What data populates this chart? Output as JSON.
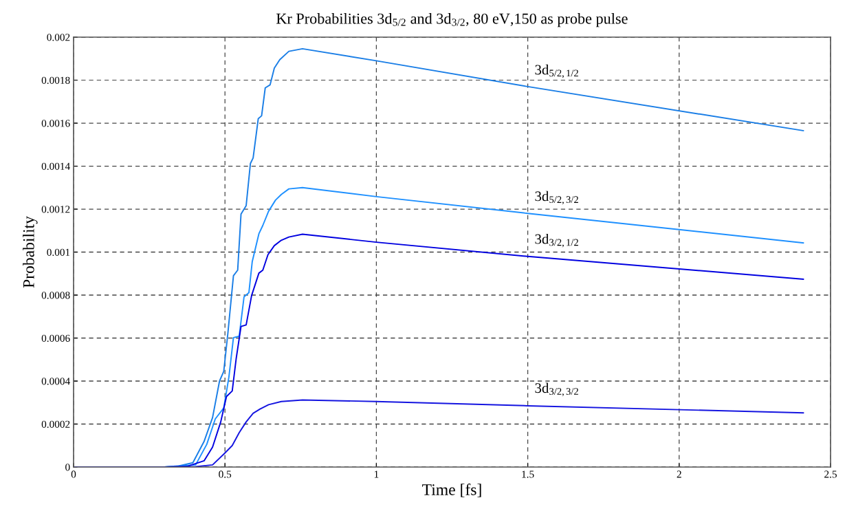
{
  "chart_data": {
    "type": "line",
    "title": "Kr Probabilities 3d$_{5/2}$ and 3d$_{3/2}$, 80 eV,150 as probe pulse",
    "xlabel": "Time [fs]",
    "ylabel": "Probability",
    "xlim": [
      0,
      2.5
    ],
    "xticks": [
      0,
      0.5,
      1,
      1.5,
      2,
      2.5
    ],
    "ylim": [
      0,
      0.002
    ],
    "yticks": [
      0,
      0.0002,
      0.0004,
      0.0006,
      0.0008,
      0.001,
      0.0012,
      0.0014,
      0.0016,
      0.0018,
      0.002
    ],
    "grid": true,
    "legend": false,
    "marker": "none",
    "line_style": "solid",
    "series": [
      {
        "name": "3d$_{5/2,1/2}$",
        "color": "#1a7ee6",
        "x": [
          0,
          0.3,
          0.347,
          0.394,
          0.431,
          0.459,
          0.482,
          0.496,
          0.51,
          0.528,
          0.542,
          0.553,
          0.57,
          0.584,
          0.593,
          0.61,
          0.621,
          0.633,
          0.649,
          0.663,
          0.681,
          0.711,
          0.756,
          1.0,
          1.5,
          2.41
        ],
        "values": [
          0,
          0,
          5e-06,
          2e-05,
          0.000119,
          0.00023,
          0.0004,
          0.000445,
          0.000628,
          0.00089,
          0.000916,
          0.001177,
          0.001216,
          0.001412,
          0.001438,
          0.001621,
          0.001634,
          0.001764,
          0.001778,
          0.001856,
          0.001895,
          0.001934,
          0.001946,
          0.00189,
          0.00177,
          0.001565
        ]
      },
      {
        "name": "3d$_{5/2,3/2}$",
        "color": "#1e90ff",
        "x": [
          0,
          0.3,
          0.403,
          0.44,
          0.468,
          0.496,
          0.513,
          0.528,
          0.547,
          0.563,
          0.579,
          0.59,
          0.612,
          0.625,
          0.644,
          0.667,
          0.686,
          0.711,
          0.756,
          1.0,
          1.5,
          2.41
        ],
        "values": [
          0,
          0,
          1e-05,
          0.000106,
          0.000224,
          0.000275,
          0.000419,
          0.000602,
          0.000609,
          0.000792,
          0.000811,
          0.000955,
          0.001085,
          0.001124,
          0.00119,
          0.001242,
          0.001268,
          0.001294,
          0.0013,
          0.001258,
          0.00118,
          0.001043
        ]
      },
      {
        "name": "3d$_{3/2,1/2}$",
        "color": "#0000e0",
        "x": [
          0,
          0.3,
          0.375,
          0.431,
          0.459,
          0.486,
          0.505,
          0.524,
          0.537,
          0.553,
          0.57,
          0.588,
          0.612,
          0.625,
          0.642,
          0.663,
          0.686,
          0.711,
          0.756,
          1.0,
          1.5,
          2.41
        ],
        "values": [
          0,
          0,
          3e-06,
          2.9e-05,
          9.3e-05,
          0.00021,
          0.000328,
          0.000354,
          0.000504,
          0.000654,
          0.000661,
          0.000798,
          0.000902,
          0.000916,
          0.000988,
          0.00103,
          0.001055,
          0.00107,
          0.001083,
          0.001046,
          0.00098,
          0.000874
        ]
      },
      {
        "name": "3d$_{3/2,3/2}$",
        "color": "#1414e0",
        "x": [
          0,
          0.3,
          0.403,
          0.459,
          0.496,
          0.524,
          0.547,
          0.57,
          0.593,
          0.616,
          0.644,
          0.686,
          0.756,
          1.0,
          1.5,
          2.41
        ],
        "values": [
          0,
          0,
          2e-06,
          1e-05,
          6e-05,
          0.0001,
          0.00016,
          0.00021,
          0.00025,
          0.00027,
          0.00029,
          0.000305,
          0.000312,
          0.000305,
          0.000285,
          0.000252
        ]
      }
    ]
  }
}
